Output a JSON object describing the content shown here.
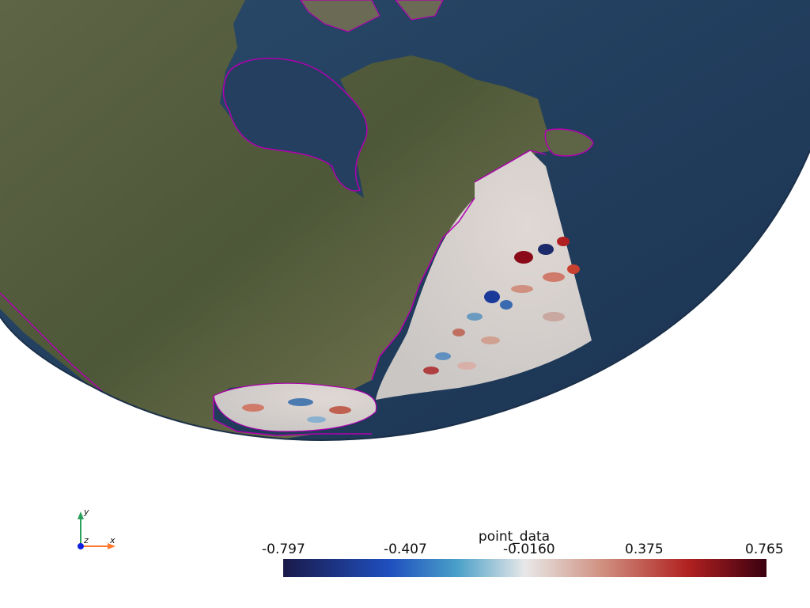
{
  "map": {
    "projection": "orthographic globe view",
    "region": "North America / Western North Atlantic",
    "coastline_color": "#b000b0",
    "ocean_color": "#1f3a5a",
    "land_colors": [
      "#6b6b4a",
      "#4f5a3a",
      "#8a8568"
    ]
  },
  "scalar_bar": {
    "title": "point_data",
    "ticks": [
      "-0.797",
      "-0.407",
      "-0.0160",
      "0.375",
      "0.765"
    ],
    "min": -0.797,
    "max": 0.765,
    "colormap": [
      "#1a1a4a",
      "#1f4fbf",
      "#4aa0c8",
      "#e8e8e8",
      "#d09080",
      "#b02020",
      "#3a0010"
    ]
  },
  "orientation_axes": {
    "x_label": "x",
    "y_label": "y",
    "z_label": "z",
    "x_color": "#ff7a30",
    "y_color": "#2ca05a",
    "z_color": "#1020e0"
  }
}
